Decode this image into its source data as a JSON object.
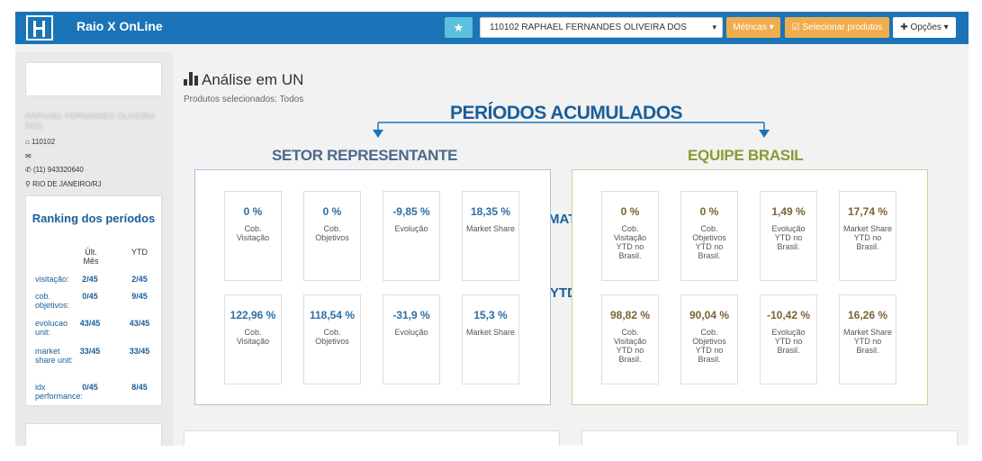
{
  "navbar": {
    "app_title": "Raio X OnLine",
    "star_icon": "★",
    "rep_select_value": "110102 RAPHAEL FERNANDES OLIVEIRA DOS",
    "metricas_label": "Métricas ▾",
    "selecionar_label": "☑ Selecionar produtos",
    "opcoes_label": "✚ Opções ▾",
    "caret": "▾"
  },
  "sidebar": {
    "rep_name": "RAPHAEL FERNANDES OLIVEIRA DOS",
    "code": "⌂ 110102",
    "email_icon": "✉",
    "phone": "✆ (11) 943320640",
    "location": "⚲ RIO DE JANEIRO/RJ",
    "ranking": {
      "title": "Ranking dos períodos",
      "col_month": "Últ. Mês",
      "col_ytd": "YTD",
      "rows": [
        {
          "label": "visitação:",
          "month": "2/45",
          "ytd": "2/45"
        },
        {
          "label": "cob. objetivos:",
          "month": "0/45",
          "ytd": "9/45"
        },
        {
          "label": "evolucao unit:",
          "month": "43/45",
          "ytd": "43/45"
        },
        {
          "label": "market share unit:",
          "month": "33/45",
          "ytd": "33/45"
        },
        {
          "label": "idx performance:",
          "month": "0/45",
          "ytd": "8/45"
        }
      ]
    }
  },
  "main": {
    "title": "Análise em UN",
    "subtitle": "Produtos selecionados: Todos",
    "annotation_top": "PERÍODOS ACUMULADOS",
    "section_left": "SETOR REPRESENTANTE",
    "section_right": "EQUIPE BRASIL",
    "mat_label": "MAT",
    "ytd_label": "YTD",
    "setor_mat": [
      {
        "value": "0 %",
        "label": "Cob. Visitação"
      },
      {
        "value": "0 %",
        "label": "Cob. Objetivos"
      },
      {
        "value": "-9,85 %",
        "label": "Evolução"
      },
      {
        "value": "18,35 %",
        "label": "Market Share"
      }
    ],
    "setor_ytd": [
      {
        "value": "122,96 %",
        "label": "Cob. Visitação"
      },
      {
        "value": "118,54 %",
        "label": "Cob. Objetivos"
      },
      {
        "value": "-31,9 %",
        "label": "Evolução"
      },
      {
        "value": "15,3 %",
        "label": "Market Share"
      }
    ],
    "brasil_mat": [
      {
        "value": "0 %",
        "label": "Cob. Visitação YTD no Brasil."
      },
      {
        "value": "0 %",
        "label": "Cob. Objetivos YTD no Brasil."
      },
      {
        "value": "1,49 %",
        "label": "Evolução YTD no Brasil."
      },
      {
        "value": "17,74 %",
        "label": "Market Share YTD no Brasil."
      }
    ],
    "brasil_ytd": [
      {
        "value": "98,82 %",
        "label": "Cob. Visitação YTD no Brasil."
      },
      {
        "value": "90,04 %",
        "label": "Cob. Objetivos YTD no Brasil."
      },
      {
        "value": "-10,42 %",
        "label": "Evolução YTD no Brasil."
      },
      {
        "value": "16,26 %",
        "label": "Market Share YTD no Brasil."
      }
    ]
  },
  "colors": {
    "navbar": "#1b74b8",
    "annotation_blue": "#1b5e99",
    "annotation_olive": "#8a9a35",
    "value_blue": "#2e6da4",
    "value_olive": "#7a6431"
  }
}
